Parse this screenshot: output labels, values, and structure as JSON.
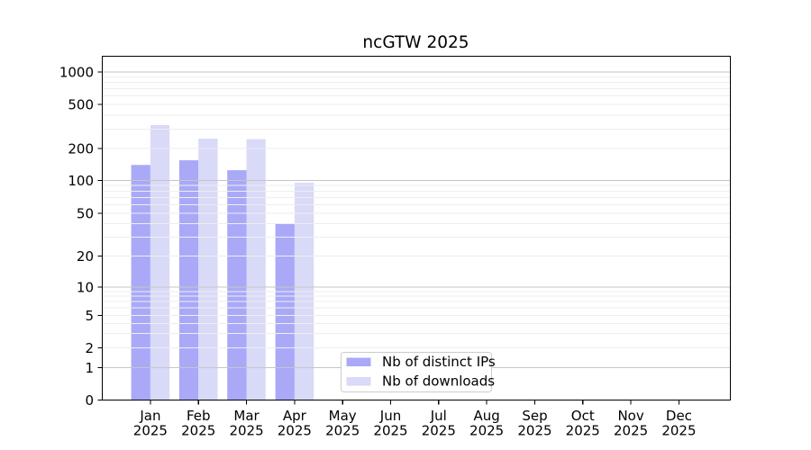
{
  "chart_data": {
    "type": "bar",
    "title": "ncGTW 2025",
    "year_label": "2025",
    "categories": [
      "Jan",
      "Feb",
      "Mar",
      "Apr",
      "May",
      "Jun",
      "Jul",
      "Aug",
      "Sep",
      "Oct",
      "Nov",
      "Dec"
    ],
    "series": [
      {
        "name": "Nb of distinct IPs",
        "color": "#a9a9f8",
        "values": [
          140,
          155,
          125,
          40,
          0,
          0,
          0,
          0,
          0,
          0,
          0,
          0
        ]
      },
      {
        "name": "Nb of downloads",
        "color": "#d9d9f8",
        "values": [
          325,
          245,
          243,
          95,
          0,
          0,
          0,
          0,
          0,
          0,
          0,
          0
        ]
      }
    ],
    "yscale": "symlog",
    "yticks": [
      0,
      1,
      2,
      5,
      10,
      20,
      50,
      100,
      200,
      500,
      1000
    ],
    "ytick_labels": [
      "0",
      "1",
      "2",
      "5",
      "10",
      "20",
      "50",
      "100",
      "200",
      "500",
      "1000"
    ],
    "ylim": [
      0,
      1400
    ],
    "xlabel": "",
    "ylabel": "",
    "grid": true,
    "legend_position": "lower center"
  },
  "colors": {
    "grid_major": "#c6c6c6",
    "grid_minor": "#eeeeee",
    "spine": "#000000",
    "legend_border": "#cccccc",
    "legend_bg": "#ffffff"
  }
}
